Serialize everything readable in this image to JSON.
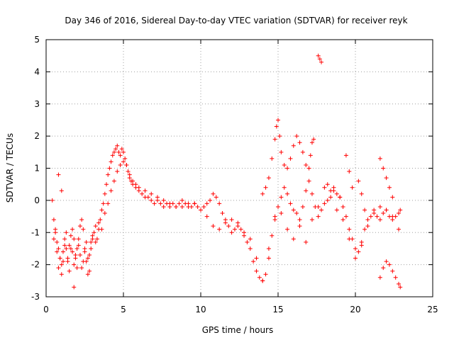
{
  "chart_data": {
    "type": "scatter",
    "title": "Day 346 of 2016, Sidereal Day-to-day VTEC variation (SDTVAR) for receiver reyk",
    "xlabel": "GPS time / hours",
    "ylabel": "SDTVAR / TECUs",
    "xlim": [
      0,
      25
    ],
    "ylim": [
      -3,
      5
    ],
    "xticks": [
      "0",
      "5",
      "10",
      "15",
      "20",
      "25"
    ],
    "yticks": [
      "-3",
      "-2",
      "-1",
      "0",
      "1",
      "2",
      "3",
      "4",
      "5"
    ],
    "grid": true,
    "marker": "+",
    "series_color": "#ff0000",
    "series": [
      {
        "name": "SDTVAR",
        "x": [
          0.4,
          0.5,
          0.6,
          0.7,
          0.8,
          0.9,
          1.0,
          1.1,
          1.2,
          1.3,
          1.4,
          1.5,
          1.6,
          1.7,
          1.8,
          1.9,
          2.0,
          2.1,
          2.2,
          2.3,
          2.4,
          2.5,
          2.6,
          2.7,
          2.8,
          2.9,
          3.0,
          3.1,
          3.2,
          3.3,
          3.4,
          3.5,
          3.6,
          3.7,
          3.8,
          3.9,
          4.0,
          4.1,
          4.2,
          4.3,
          4.4,
          4.5,
          4.6,
          4.7,
          4.8,
          4.9,
          5.0,
          5.1,
          5.2,
          5.3,
          5.4,
          5.5,
          5.6,
          5.8,
          6.0,
          6.2,
          6.4,
          6.6,
          6.8,
          7.0,
          7.2,
          7.4,
          7.6,
          7.8,
          8.0,
          8.2,
          8.4,
          8.6,
          8.8,
          9.0,
          9.2,
          9.4,
          9.6,
          9.8,
          10.0,
          10.2,
          10.4,
          10.6,
          10.8,
          11.0,
          11.2,
          11.4,
          11.6,
          11.8,
          12.0,
          12.2,
          12.4,
          12.6,
          12.8,
          13.0,
          13.2,
          13.4,
          13.6,
          13.8,
          14.0,
          14.2,
          14.4,
          14.6,
          14.8,
          15.0,
          15.2,
          15.4,
          15.6,
          15.8,
          16.0,
          16.2,
          16.4,
          16.6,
          16.8,
          17.0,
          17.2,
          17.4,
          17.6,
          17.8,
          18.0,
          18.2,
          18.4,
          18.6,
          18.8,
          19.0,
          19.2,
          19.4,
          19.6,
          19.8,
          20.0,
          20.2,
          20.4,
          20.6,
          20.8,
          21.0,
          21.2,
          21.4,
          21.6,
          21.8,
          22.0,
          22.2,
          22.4,
          22.6,
          22.8,
          22.9,
          0.5,
          0.6,
          0.7,
          0.8,
          0.9,
          1.0,
          1.1,
          1.2,
          1.3,
          1.4,
          1.5,
          1.6,
          1.7,
          1.8,
          1.9,
          2.0,
          2.1,
          2.2,
          2.3,
          2.4,
          2.5,
          2.6,
          2.7,
          2.8,
          2.9,
          3.0,
          3.2,
          3.4,
          3.6,
          3.8,
          4.0,
          4.2,
          4.4,
          4.6,
          4.8,
          5.0,
          5.2,
          5.4,
          5.6,
          5.8,
          6.0,
          6.4,
          6.8,
          7.2,
          7.6,
          8.0,
          8.4,
          8.8,
          9.2,
          9.6,
          10.0,
          10.4,
          10.8,
          11.2,
          11.6,
          12.0,
          12.4,
          12.8,
          13.2,
          13.6,
          14.0,
          14.4,
          14.8,
          15.2,
          15.6,
          16.0,
          16.4,
          16.8,
          17.2,
          17.6,
          18.0,
          18.4,
          18.8,
          19.2,
          19.6,
          20.0,
          20.4,
          20.8,
          21.2,
          21.6,
          22.0,
          22.4,
          22.8,
          0.8,
          1.0,
          1.8,
          14.0,
          14.2,
          14.4,
          14.6,
          14.8,
          14.9,
          15.0,
          15.1,
          15.2,
          15.4,
          15.6,
          15.8,
          16.0,
          16.2,
          16.4,
          16.6,
          16.8,
          17.0,
          17.1,
          17.2,
          17.3,
          17.6,
          17.7,
          17.8,
          18.2,
          18.6,
          19.0,
          19.4,
          19.6,
          19.8,
          20.2,
          20.4,
          20.6,
          21.6,
          21.8,
          22.0,
          22.2,
          22.4,
          21.6,
          21.8,
          22.0,
          22.2,
          22.4,
          22.6,
          22.8,
          22.9
        ],
        "y": [
          0.0,
          -0.6,
          -1.0,
          -1.3,
          -1.5,
          -1.8,
          -2.0,
          -1.6,
          -1.2,
          -1.5,
          -1.9,
          -1.4,
          -1.1,
          -1.6,
          -2.0,
          -1.8,
          -1.5,
          -1.2,
          -1.7,
          -2.1,
          -1.9,
          -1.6,
          -1.3,
          -1.8,
          -2.2,
          -1.5,
          -1.1,
          -1.0,
          -1.3,
          -1.2,
          -0.9,
          -0.6,
          -0.3,
          -0.1,
          0.2,
          0.5,
          0.8,
          1.0,
          1.2,
          1.4,
          1.5,
          1.6,
          1.7,
          1.5,
          1.4,
          1.6,
          1.5,
          1.3,
          1.1,
          0.9,
          0.7,
          0.6,
          0.5,
          0.4,
          0.3,
          0.2,
          0.1,
          0.1,
          0.0,
          -0.1,
          0.0,
          -0.1,
          -0.2,
          -0.1,
          -0.2,
          -0.1,
          -0.2,
          -0.1,
          0.0,
          -0.1,
          -0.2,
          -0.2,
          -0.1,
          -0.2,
          -0.3,
          -0.2,
          -0.1,
          0.0,
          0.2,
          0.1,
          -0.1,
          -0.4,
          -0.6,
          -0.8,
          -1.0,
          -0.9,
          -0.7,
          -0.9,
          -1.1,
          -1.3,
          -1.5,
          -1.9,
          -2.2,
          -2.4,
          -2.5,
          -2.3,
          -1.8,
          -1.1,
          -0.5,
          -0.2,
          0.1,
          0.4,
          0.2,
          -0.1,
          -0.3,
          -0.4,
          -0.6,
          -0.2,
          0.3,
          0.6,
          0.2,
          -0.2,
          -0.5,
          -0.3,
          -0.1,
          0.0,
          0.3,
          0.4,
          0.2,
          0.1,
          -0.2,
          -0.5,
          -0.9,
          -1.2,
          -1.5,
          -1.6,
          -1.3,
          -0.9,
          -0.6,
          -0.5,
          -0.4,
          -0.5,
          -0.6,
          -0.4,
          -0.3,
          -0.5,
          -0.6,
          -0.5,
          -0.4,
          -0.3,
          -1.2,
          -0.9,
          -1.6,
          -2.1,
          -1.8,
          -2.3,
          -1.9,
          -1.4,
          -1.0,
          -1.8,
          -2.2,
          -1.5,
          -0.9,
          -1.2,
          -1.7,
          -2.1,
          -1.4,
          -0.8,
          -0.6,
          -0.9,
          -1.5,
          -1.9,
          -2.3,
          -1.7,
          -1.3,
          -1.2,
          -0.8,
          -0.7,
          -0.9,
          -0.4,
          -0.1,
          0.3,
          0.6,
          0.9,
          1.1,
          1.2,
          1.1,
          0.8,
          0.6,
          0.5,
          0.4,
          0.3,
          0.2,
          0.1,
          0.0,
          -0.1,
          -0.2,
          -0.2,
          -0.1,
          -0.1,
          -0.3,
          -0.5,
          -0.8,
          -0.9,
          -0.7,
          -0.6,
          -0.8,
          -1.0,
          -1.2,
          -1.8,
          -2.5,
          -1.5,
          -0.6,
          -0.4,
          -0.9,
          -1.2,
          -0.8,
          -1.3,
          -0.6,
          -0.2,
          0.4,
          0.1,
          -0.3,
          -0.6,
          -1.2,
          -1.8,
          -1.4,
          -0.8,
          -0.3,
          -0.2,
          -0.3,
          -0.5,
          -0.9,
          0.8,
          0.3,
          -2.7,
          0.2,
          0.4,
          0.7,
          1.3,
          1.9,
          2.3,
          2.5,
          2.0,
          1.5,
          1.1,
          1.0,
          1.3,
          1.7,
          2.0,
          1.8,
          1.5,
          1.1,
          1.0,
          1.4,
          1.8,
          1.9,
          4.5,
          4.4,
          4.3,
          0.5,
          0.3,
          0.1,
          1.4,
          0.9,
          0.4,
          0.6,
          0.2,
          -0.3,
          1.3,
          1.0,
          0.7,
          0.4,
          0.1,
          -2.4,
          -2.1,
          -1.9,
          -2.0,
          -2.2,
          -2.4,
          -2.6,
          -2.7
        ]
      }
    ]
  }
}
